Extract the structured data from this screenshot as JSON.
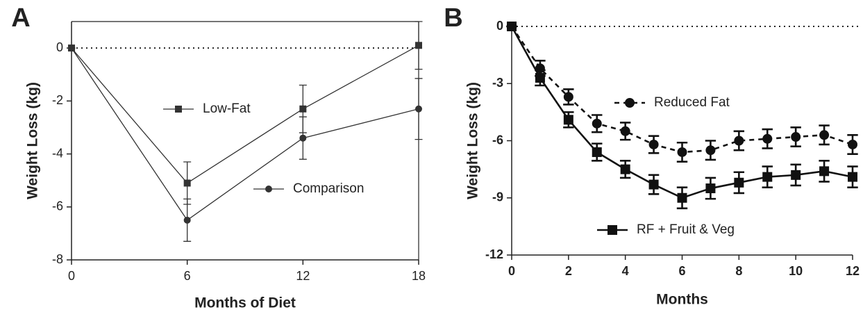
{
  "chart_data": [
    {
      "type": "line",
      "panel_label": "A",
      "y_label": "Weight Loss (kg)",
      "x_label": "Months of Diet",
      "xlim": [
        0,
        18
      ],
      "xticks": [
        0,
        6,
        12,
        18
      ],
      "ylim": [
        -8,
        1
      ],
      "yticks": [
        0,
        -2,
        -4,
        -6,
        -8
      ],
      "frame": true,
      "zero_line": true,
      "x": [
        0,
        6,
        12,
        18
      ],
      "series": [
        {
          "name": "Low-Fat",
          "color": "#333333",
          "marker": "square",
          "dashed": false,
          "values": [
            0,
            -5.1,
            -2.3,
            0.1
          ],
          "errors": [
            0,
            0.8,
            0.9,
            0.9
          ]
        },
        {
          "name": "Comparison",
          "color": "#333333",
          "marker": "circle",
          "dashed": false,
          "values": [
            0,
            -6.5,
            -3.4,
            -2.3
          ],
          "errors": [
            0,
            0.8,
            0.8,
            1.15
          ]
        }
      ]
    },
    {
      "type": "line",
      "panel_label": "B",
      "y_label": "Weight Loss (kg)",
      "x_label": "Months",
      "xlim": [
        0,
        12
      ],
      "xticks": [
        0,
        2,
        4,
        6,
        8,
        10,
        12
      ],
      "ylim": [
        -12,
        0
      ],
      "yticks": [
        0,
        -3,
        -6,
        -9,
        -12
      ],
      "frame": false,
      "zero_line": true,
      "x": [
        0,
        1,
        2,
        3,
        4,
        5,
        6,
        7,
        8,
        9,
        10,
        11,
        12
      ],
      "series": [
        {
          "name": "Reduced Fat",
          "color": "#111111",
          "marker": "circle",
          "dashed": true,
          "values": [
            0,
            -2.2,
            -3.7,
            -5.1,
            -5.5,
            -6.2,
            -6.6,
            -6.5,
            -6.0,
            -5.9,
            -5.8,
            -5.7,
            -6.2
          ],
          "errors": [
            0,
            0.4,
            0.4,
            0.45,
            0.45,
            0.45,
            0.5,
            0.5,
            0.5,
            0.5,
            0.5,
            0.5,
            0.5
          ]
        },
        {
          "name": "RF + Fruit & Veg",
          "color": "#111111",
          "marker": "square",
          "dashed": false,
          "values": [
            0,
            -2.7,
            -4.9,
            -6.6,
            -7.5,
            -8.3,
            -9.0,
            -8.5,
            -8.2,
            -7.9,
            -7.8,
            -7.6,
            -7.9
          ],
          "errors": [
            0,
            0.4,
            0.4,
            0.45,
            0.45,
            0.5,
            0.55,
            0.55,
            0.55,
            0.55,
            0.55,
            0.55,
            0.55
          ]
        }
      ]
    }
  ]
}
